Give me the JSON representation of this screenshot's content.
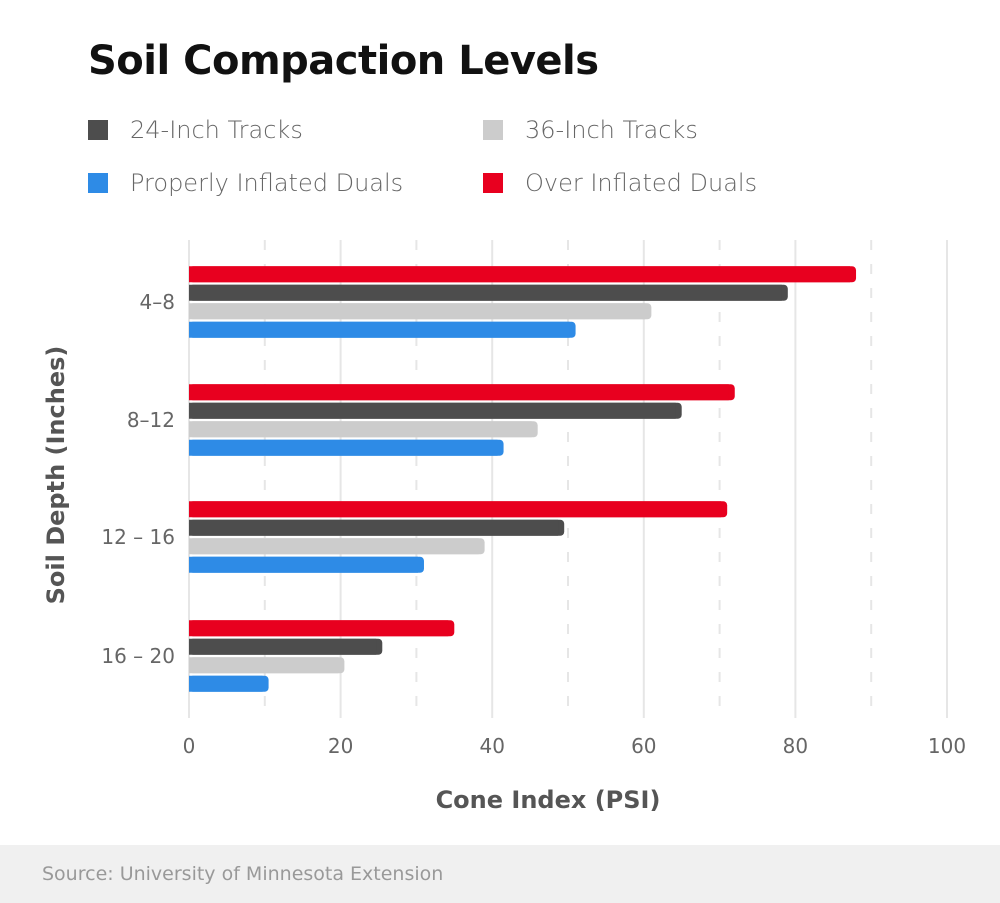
{
  "chart_data": {
    "type": "bar",
    "orientation": "horizontal",
    "title": "Soil Compaction Levels",
    "xlabel": "Cone Index (PSI)",
    "ylabel": "Soil Depth (Inches)",
    "xlim": [
      0,
      100
    ],
    "xticks": [
      "0",
      "20",
      "40",
      "60",
      "80",
      "100"
    ],
    "grid": true,
    "legend_position": "top",
    "categories": [
      "4–8",
      "8–12",
      "12 – 16",
      "16 – 20"
    ],
    "series": [
      {
        "name": "Over Inflated Duals",
        "color": "#e8001f",
        "values": [
          88,
          72,
          71,
          35
        ]
      },
      {
        "name": "24-Inch Tracks",
        "color": "#4d4d4d",
        "values": [
          79,
          65,
          49.5,
          25.5
        ]
      },
      {
        "name": "36-Inch Tracks",
        "color": "#cccccc",
        "values": [
          61,
          46,
          39,
          20.5
        ]
      },
      {
        "name": "Properly Inflated Duals",
        "color": "#2e8be6",
        "values": [
          51,
          41.5,
          31,
          10.5
        ]
      }
    ],
    "source": "Source: University of Minnesota Extension"
  }
}
